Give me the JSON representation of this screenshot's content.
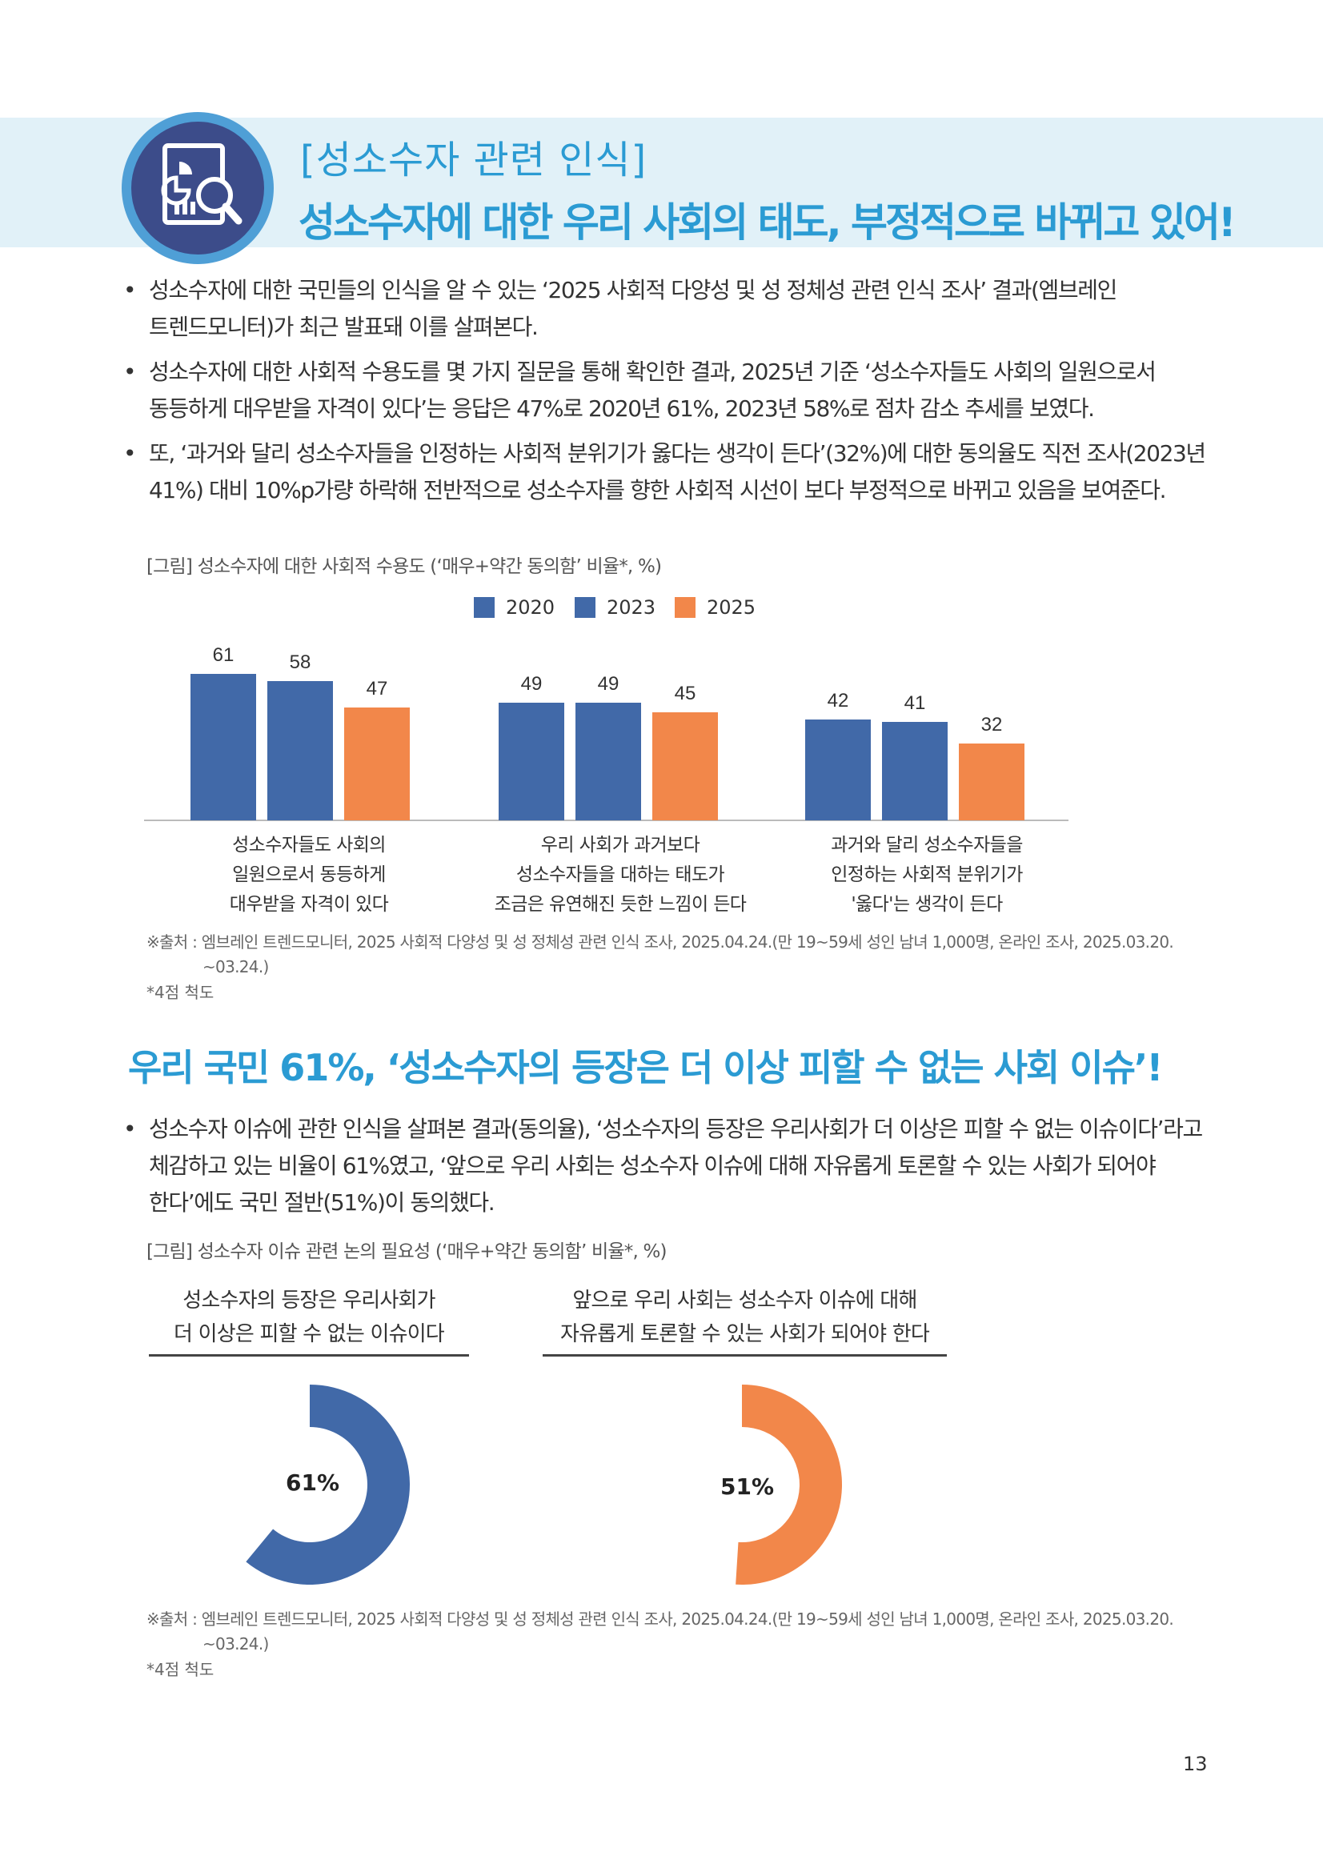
{
  "header": {
    "subtitle": "[성소수자 관련 인식]",
    "title": "성소수자에 대한 우리 사회의 태도, 부정적으로 바뀌고 있어!"
  },
  "bullets1": [
    "성소수자에 대한 국민들의 인식을 알 수 있는 ‘2025 사회적 다양성 및 성 정체성 관련 인식 조사’ 결과(엠브레인 트렌드모니터)가 최근 발표돼 이를 살펴본다.",
    "성소수자에 대한 사회적 수용도를 몇 가지 질문을 통해 확인한 결과, 2025년 기준 ‘성소수자들도 사회의 일원으로서 동등하게 대우받을 자격이 있다’는 응답은 47%로 2020년 61%, 2023년 58%로 점차 감소 추세를 보였다.",
    "또, ‘과거와 달리 성소수자들을 인정하는 사회적 분위기가 옳다는 생각이 든다’(32%)에 대한 동의율도 직전 조사(2023년 41%) 대비 10%p가량 하락해 전반적으로 성소수자를 향한 사회적 시선이 보다 부정적으로 바뀌고 있음을 보여준다."
  ],
  "bullet_symbol": "•",
  "figure1": {
    "caption": "[그림] 성소수자에 대한 사회적 수용도 (‘매우+약간 동의함’ 비율*, %)",
    "source_line1": "※출처 : 엠브레인 트렌드모니터, 2025 사회적 다양성 및 성 정체성 관련 인식 조사, 2025.04.24.(만 19~59세 성인 남녀 1,000명, 온라인 조사, 2025.03.20.",
    "source_line2": "~03.24.)",
    "note": "*4점 척도"
  },
  "chart_data": [
    {
      "type": "bar",
      "categories": [
        "성소수자들도 사회의 일원으로서 동등하게 대우받을 자격이 있다",
        "우리 사회가 과거보다 성소수자들을 대하는 태도가 조금은 유연해진 듯한 느낌이 든다",
        "과거와 달리 성소수자들을 인정하는 사회적 분위기가 '옳다'는 생각이 든다"
      ],
      "category_lines": [
        [
          "성소수자들도 사회의",
          "일원으로서 동등하게",
          "대우받을 자격이 있다"
        ],
        [
          "우리 사회가 과거보다",
          "성소수자들을 대하는 태도가",
          "조금은 유연해진 듯한 느낌이 든다"
        ],
        [
          "과거와 달리 성소수자들을",
          "인정하는 사회적 분위기가",
          "'옳다'는 생각이 든다"
        ]
      ],
      "series": [
        {
          "name": "2020",
          "values": [
            61,
            49,
            42
          ],
          "color": "#4169a8"
        },
        {
          "name": "2023",
          "values": [
            58,
            49,
            41
          ],
          "color": "#4169a8"
        },
        {
          "name": "2025",
          "values": [
            47,
            45,
            32
          ],
          "color": "#f2874a"
        }
      ],
      "ylim": [
        0,
        70
      ],
      "grid": false,
      "legend": "top-center"
    },
    {
      "type": "pie",
      "title_lines": [
        "성소수자의 등장은 우리사회가",
        "더 이상은 피할 수 없는 이슈이다"
      ],
      "value": 61,
      "label": "61%",
      "color": "#4169a8"
    },
    {
      "type": "pie",
      "title_lines": [
        "앞으로 우리 사회는 성소수자 이슈에 대해",
        "자유롭게 토론할 수 있는 사회가 되어야 한다"
      ],
      "value": 51,
      "label": "51%",
      "color": "#f2874a"
    }
  ],
  "section2": {
    "title": "우리 국민 61%, ‘성소수자의 등장은 더 이상 피할 수 없는 사회 이슈’!",
    "bullets": [
      "성소수자 이슈에 관한 인식을 살펴본 결과(동의율), ‘성소수자의 등장은 우리사회가 더 이상은 피할 수 없는 이슈이다’라고 체감하고 있는 비율이 61%였고, ‘앞으로 우리 사회는 성소수자 이슈에 대해 자유롭게 토론할 수 있는 사회가 되어야 한다’에도 국민 절반(51%)이 동의했다."
    ]
  },
  "figure2": {
    "caption": "[그림] 성소수자 이슈 관련 논의 필요성 (‘매우+약간 동의함’ 비율*, %)",
    "source_line1": "※출처 : 엠브레인 트렌드모니터, 2025 사회적 다양성 및 성 정체성 관련 인식 조사, 2025.04.24.(만 19~59세 성인 남녀 1,000명, 온라인 조사, 2025.03.20.",
    "source_line2": "~03.24.)",
    "note": "*4점 척도"
  },
  "page_number": "13",
  "icon": "report-magnifier-icon"
}
